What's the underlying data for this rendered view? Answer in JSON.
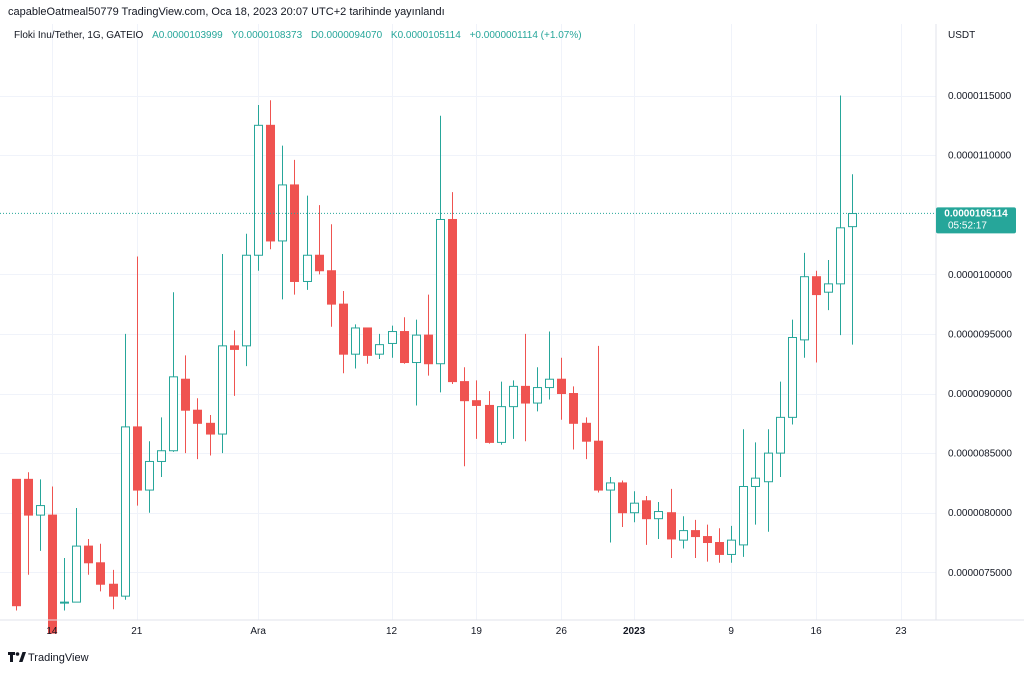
{
  "header": {
    "publish_note": "capableOatmeal50779 TradingView.com, Oca 18, 2023 20:07 UTC+2 tarihinde yayınlandı"
  },
  "legend": {
    "symbol": "Floki Inu/Tether, 1G, GATEIO",
    "open_label": "A",
    "open_value": "0.0000103999",
    "high_label": "Y",
    "high_value": "0.0000108373",
    "low_label": "D",
    "low_value": "0.0000094070",
    "close_label": "K",
    "close_value": "0.0000105114",
    "change": "+0.0000001114 (+1.07%)"
  },
  "price_axis": {
    "currency": "USDT",
    "last_price_label": "0.0000105114",
    "countdown": "05:52:17"
  },
  "footer": {
    "brand": "TradingView"
  },
  "colors": {
    "up": "#26a69a",
    "down": "#ef5350",
    "grid": "#f0f3fa",
    "text": "#131722",
    "last_price_bg": "#26a69a"
  },
  "chart_data": {
    "type": "candlestick",
    "symbol": "Floki Inu/Tether",
    "interval": "1D",
    "exchange": "GATEIO",
    "y_unit": "USDT",
    "ylim": [
      7.1e-06,
      1.21e-05
    ],
    "y_ticks": [
      {
        "value": 7.5e-06,
        "label": "0.0000075000"
      },
      {
        "value": 8e-06,
        "label": "0.0000080000"
      },
      {
        "value": 8.5e-06,
        "label": "0.0000085000"
      },
      {
        "value": 9e-06,
        "label": "0.0000090000"
      },
      {
        "value": 9.5e-06,
        "label": "0.0000095000"
      },
      {
        "value": 1e-05,
        "label": "0.0000100000"
      },
      {
        "value": 1.1e-05,
        "label": "0.0000110000"
      },
      {
        "value": 1.15e-05,
        "label": "0.0000115000"
      }
    ],
    "x_ticks": [
      {
        "index": 3,
        "label": "14"
      },
      {
        "index": 10,
        "label": "21"
      },
      {
        "index": 20,
        "label": "Ara"
      },
      {
        "index": 31,
        "label": "12"
      },
      {
        "index": 38,
        "label": "19"
      },
      {
        "index": 45,
        "label": "26"
      },
      {
        "index": 51,
        "label": "2023"
      },
      {
        "index": 59,
        "label": "9"
      },
      {
        "index": 66,
        "label": "16"
      },
      {
        "index": 73,
        "label": "23"
      }
    ],
    "bold_x_tick": "2023",
    "last_price": 1.05114e-05,
    "candles": [
      {
        "o": 8.28e-06,
        "h": 8.28e-06,
        "l": 7.18e-06,
        "c": 7.22e-06
      },
      {
        "o": 8.28e-06,
        "h": 8.34e-06,
        "l": 7.48e-06,
        "c": 7.98e-06
      },
      {
        "o": 7.98e-06,
        "h": 8.28e-06,
        "l": 7.68e-06,
        "c": 8.06e-06
      },
      {
        "o": 7.98e-06,
        "h": 8.22e-06,
        "l": 6.99e-06,
        "c": 6.99e-06
      },
      {
        "o": 7.25e-06,
        "h": 7.62e-06,
        "l": 7.18e-06,
        "c": 7.25e-06
      },
      {
        "o": 7.25e-06,
        "h": 8.04e-06,
        "l": 7.25e-06,
        "c": 7.72e-06
      },
      {
        "o": 7.72e-06,
        "h": 7.78e-06,
        "l": 7.48e-06,
        "c": 7.58e-06
      },
      {
        "o": 7.58e-06,
        "h": 7.74e-06,
        "l": 7.34e-06,
        "c": 7.4e-06
      },
      {
        "o": 7.4e-06,
        "h": 7.52e-06,
        "l": 7.19e-06,
        "c": 7.3e-06
      },
      {
        "o": 7.3e-06,
        "h": 9.5e-06,
        "l": 7.27e-06,
        "c": 8.72e-06
      },
      {
        "o": 8.72e-06,
        "h": 1.015e-05,
        "l": 8.06e-06,
        "c": 8.19e-06
      },
      {
        "o": 8.19e-06,
        "h": 8.6e-06,
        "l": 8e-06,
        "c": 8.43e-06
      },
      {
        "o": 8.43e-06,
        "h": 8.8e-06,
        "l": 8.3e-06,
        "c": 8.52e-06
      },
      {
        "o": 8.52e-06,
        "h": 9.85e-06,
        "l": 8.51e-06,
        "c": 9.14e-06
      },
      {
        "o": 9.12e-06,
        "h": 9.32e-06,
        "l": 8.5e-06,
        "c": 8.86e-06
      },
      {
        "o": 8.86e-06,
        "h": 8.96e-06,
        "l": 8.45e-06,
        "c": 8.75e-06
      },
      {
        "o": 8.75e-06,
        "h": 8.82e-06,
        "l": 8.48e-06,
        "c": 8.66e-06
      },
      {
        "o": 8.66e-06,
        "h": 1.017e-05,
        "l": 8.5e-06,
        "c": 9.4e-06
      },
      {
        "o": 9.4e-06,
        "h": 9.53e-06,
        "l": 8.98e-06,
        "c": 9.37e-06
      },
      {
        "o": 9.4e-06,
        "h": 1.034e-05,
        "l": 9.23e-06,
        "c": 1.016e-05
      },
      {
        "o": 1.016e-05,
        "h": 1.142e-05,
        "l": 1.003e-05,
        "c": 1.125e-05
      },
      {
        "o": 1.125e-05,
        "h": 1.146e-05,
        "l": 1.021e-05,
        "c": 1.028e-05
      },
      {
        "o": 1.028e-05,
        "h": 1.108e-05,
        "l": 9.79e-06,
        "c": 1.075e-05
      },
      {
        "o": 1.075e-05,
        "h": 1.096e-05,
        "l": 9.83e-06,
        "c": 9.94e-06
      },
      {
        "o": 9.94e-06,
        "h": 1.066e-05,
        "l": 9.87e-06,
        "c": 1.016e-05
      },
      {
        "o": 1.016e-05,
        "h": 1.058e-05,
        "l": 1e-05,
        "c": 1.003e-05
      },
      {
        "o": 1.003e-05,
        "h": 1.042e-05,
        "l": 9.56e-06,
        "c": 9.75e-06
      },
      {
        "o": 9.75e-06,
        "h": 9.86e-06,
        "l": 9.17e-06,
        "c": 9.33e-06
      },
      {
        "o": 9.33e-06,
        "h": 9.58e-06,
        "l": 9.21e-06,
        "c": 9.55e-06
      },
      {
        "o": 9.55e-06,
        "h": 9.55e-06,
        "l": 9.25e-06,
        "c": 9.32e-06
      },
      {
        "o": 9.33e-06,
        "h": 9.5e-06,
        "l": 9.29e-06,
        "c": 9.41e-06
      },
      {
        "o": 9.42e-06,
        "h": 9.57e-06,
        "l": 9.3e-06,
        "c": 9.52e-06
      },
      {
        "o": 9.52e-06,
        "h": 9.64e-06,
        "l": 9.25e-06,
        "c": 9.26e-06
      },
      {
        "o": 9.26e-06,
        "h": 9.62e-06,
        "l": 8.9e-06,
        "c": 9.49e-06
      },
      {
        "o": 9.49e-06,
        "h": 9.83e-06,
        "l": 9.15e-06,
        "c": 9.25e-06
      },
      {
        "o": 9.25e-06,
        "h": 1.133e-05,
        "l": 9.01e-06,
        "c": 1.046e-05
      },
      {
        "o": 1.046e-05,
        "h": 1.069e-05,
        "l": 9.08e-06,
        "c": 9.1e-06
      },
      {
        "o": 9.1e-06,
        "h": 9.22e-06,
        "l": 8.39e-06,
        "c": 8.94e-06
      },
      {
        "o": 8.94e-06,
        "h": 9.11e-06,
        "l": 8.62e-06,
        "c": 8.9e-06
      },
      {
        "o": 8.9e-06,
        "h": 9.02e-06,
        "l": 8.58e-06,
        "c": 8.59e-06
      },
      {
        "o": 8.59e-06,
        "h": 9.1e-06,
        "l": 8.57e-06,
        "c": 8.89e-06
      },
      {
        "o": 8.89e-06,
        "h": 9.11e-06,
        "l": 8.62e-06,
        "c": 9.06e-06
      },
      {
        "o": 9.06e-06,
        "h": 9.5e-06,
        "l": 8.6e-06,
        "c": 8.92e-06
      },
      {
        "o": 8.92e-06,
        "h": 9.22e-06,
        "l": 8.85e-06,
        "c": 9.05e-06
      },
      {
        "o": 9.05e-06,
        "h": 9.52e-06,
        "l": 8.95e-06,
        "c": 9.12e-06
      },
      {
        "o": 9.12e-06,
        "h": 9.3e-06,
        "l": 8.78e-06,
        "c": 9e-06
      },
      {
        "o": 9e-06,
        "h": 9.06e-06,
        "l": 8.53e-06,
        "c": 8.75e-06
      },
      {
        "o": 8.75e-06,
        "h": 8.8e-06,
        "l": 8.45e-06,
        "c": 8.6e-06
      },
      {
        "o": 8.6e-06,
        "h": 9.4e-06,
        "l": 8.17e-06,
        "c": 8.19e-06
      },
      {
        "o": 8.19e-06,
        "h": 8.3e-06,
        "l": 7.75e-06,
        "c": 8.25e-06
      },
      {
        "o": 8.25e-06,
        "h": 8.27e-06,
        "l": 7.88e-06,
        "c": 8e-06
      },
      {
        "o": 8e-06,
        "h": 8.18e-06,
        "l": 7.92e-06,
        "c": 8.08e-06
      },
      {
        "o": 8.1e-06,
        "h": 8.14e-06,
        "l": 7.73e-06,
        "c": 7.95e-06
      },
      {
        "o": 7.95e-06,
        "h": 8.09e-06,
        "l": 7.78e-06,
        "c": 8.01e-06
      },
      {
        "o": 8e-06,
        "h": 8.2e-06,
        "l": 7.62e-06,
        "c": 7.78e-06
      },
      {
        "o": 7.77e-06,
        "h": 7.97e-06,
        "l": 7.7e-06,
        "c": 7.85e-06
      },
      {
        "o": 7.85e-06,
        "h": 7.94e-06,
        "l": 7.62e-06,
        "c": 7.8e-06
      },
      {
        "o": 7.8e-06,
        "h": 7.9e-06,
        "l": 7.59e-06,
        "c": 7.75e-06
      },
      {
        "o": 7.75e-06,
        "h": 7.87e-06,
        "l": 7.58e-06,
        "c": 7.65e-06
      },
      {
        "o": 7.65e-06,
        "h": 7.89e-06,
        "l": 7.58e-06,
        "c": 7.77e-06
      },
      {
        "o": 7.73e-06,
        "h": 8.7e-06,
        "l": 7.63e-06,
        "c": 8.22e-06
      },
      {
        "o": 8.22e-06,
        "h": 8.59e-06,
        "l": 7.9e-06,
        "c": 8.29e-06
      },
      {
        "o": 8.26e-06,
        "h": 8.7e-06,
        "l": 7.84e-06,
        "c": 8.5e-06
      },
      {
        "o": 8.5e-06,
        "h": 9.1e-06,
        "l": 8.3e-06,
        "c": 8.8e-06
      },
      {
        "o": 8.8e-06,
        "h": 9.62e-06,
        "l": 8.74e-06,
        "c": 9.47e-06
      },
      {
        "o": 9.45e-06,
        "h": 1.018e-05,
        "l": 9.3e-06,
        "c": 9.98e-06
      },
      {
        "o": 9.98e-06,
        "h": 1.003e-05,
        "l": 9.26e-06,
        "c": 9.83e-06
      },
      {
        "o": 9.85e-06,
        "h": 1.012e-05,
        "l": 9.7e-06,
        "c": 9.92e-06
      },
      {
        "o": 9.92e-06,
        "h": 1.15e-05,
        "l": 9.49e-06,
        "c": 1.039e-05
      },
      {
        "o": 1.04e-05,
        "h": 1.084e-05,
        "l": 9.41e-06,
        "c": 1.051e-05
      }
    ]
  }
}
